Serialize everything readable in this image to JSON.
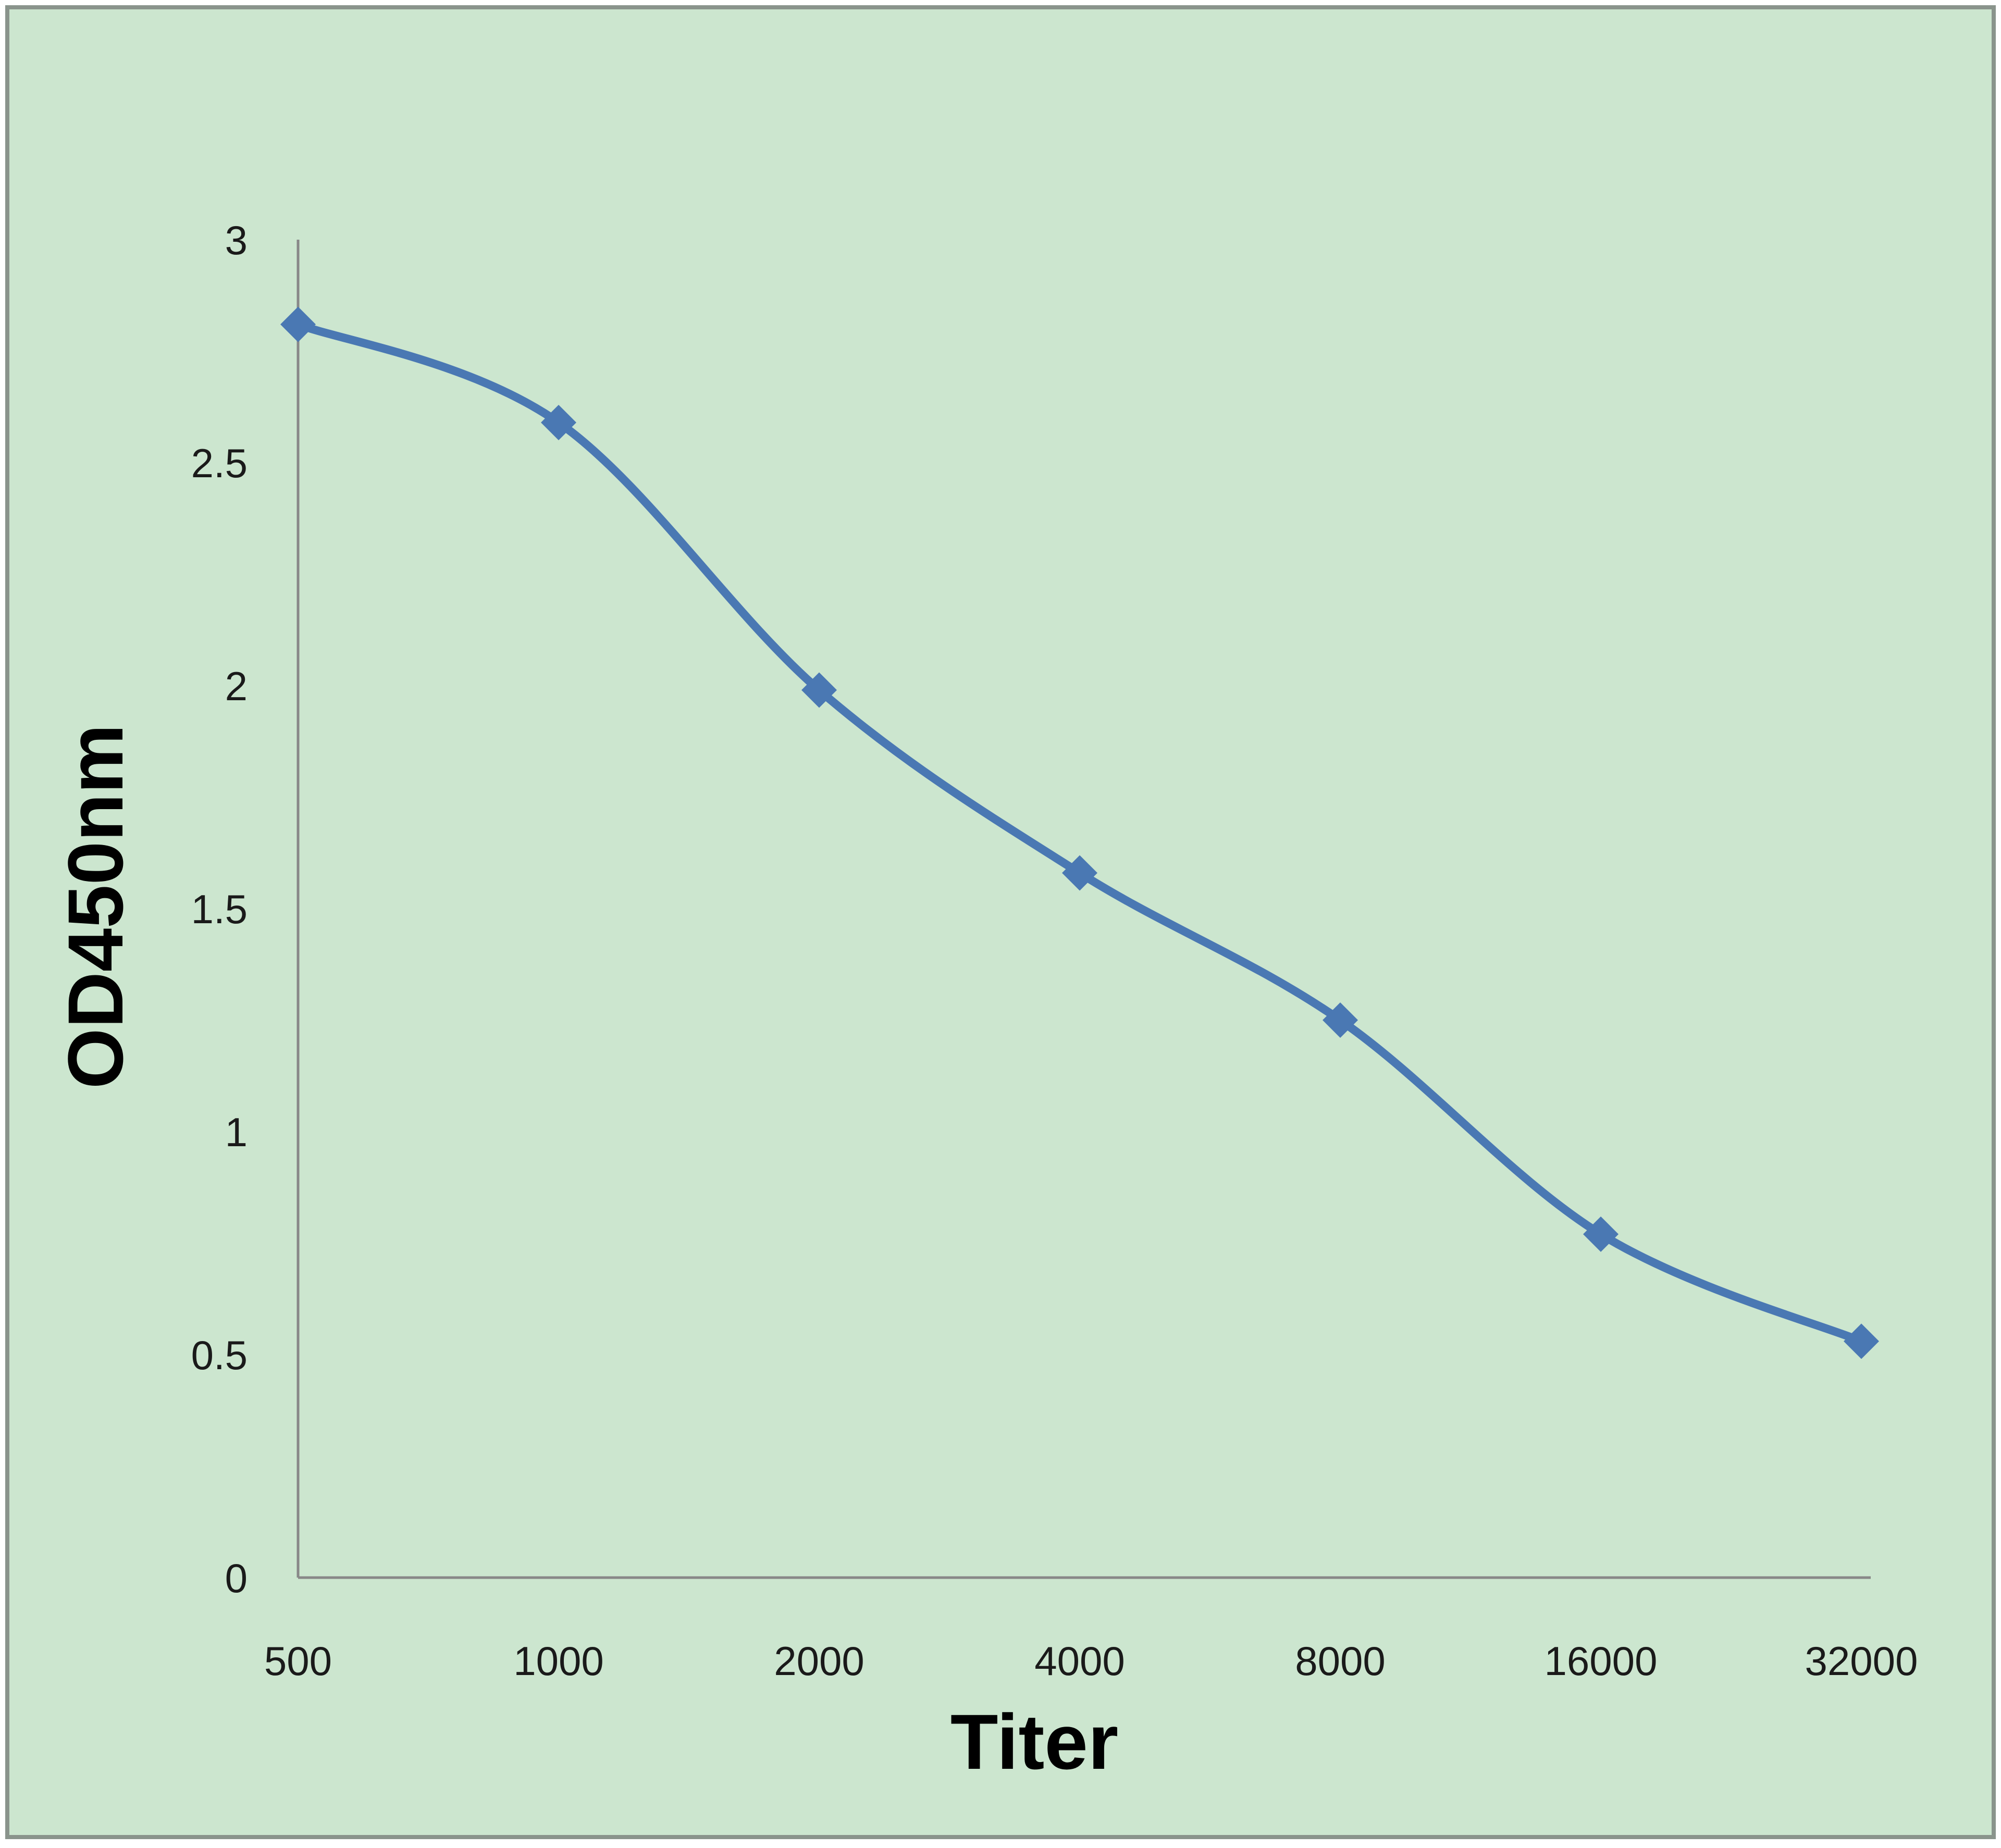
{
  "chart_data": {
    "type": "line",
    "title": "",
    "xlabel": "Titer",
    "ylabel": "OD450nm",
    "categories": [
      "500",
      "1000",
      "2000",
      "4000",
      "8000",
      "16000",
      "32000"
    ],
    "series": [
      {
        "name": "OD450nm",
        "values": [
          2.81,
          2.59,
          1.99,
          1.58,
          1.25,
          0.77,
          0.53
        ]
      }
    ],
    "ylim": [
      0,
      3
    ],
    "yticks": [
      "0",
      "0.5",
      "1",
      "1.5",
      "2",
      "2.5",
      "3"
    ],
    "grid": false,
    "legend": "none",
    "smooth": true
  },
  "colors": {
    "background": "#cce6cf",
    "border": "#8a948c",
    "axis": "#888888",
    "series": "#4a78b3",
    "text": "#1a1a1a"
  }
}
